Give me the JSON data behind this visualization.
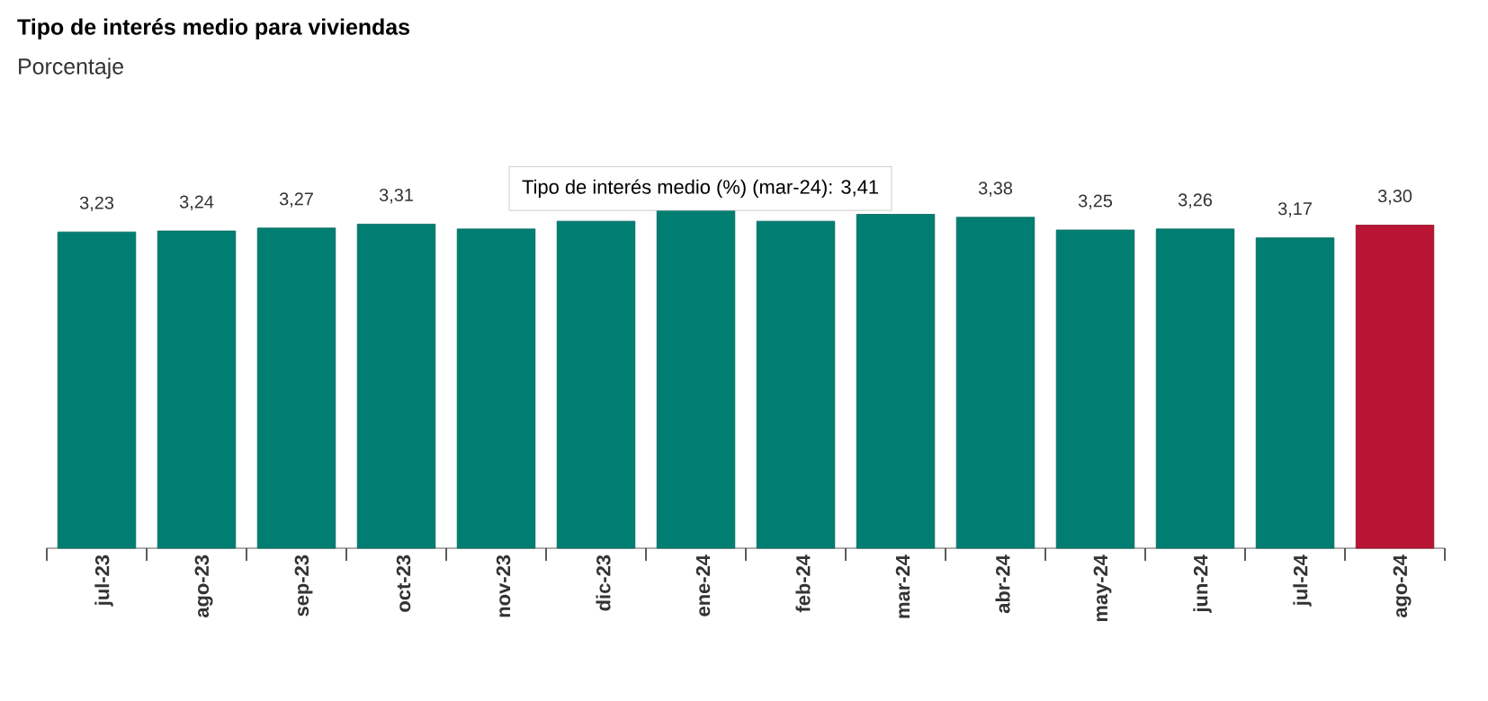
{
  "chart_data": {
    "type": "bar",
    "title": "Tipo de interés medio para viviendas",
    "subtitle": "Porcentaje",
    "categories": [
      "jul-23",
      "ago-23",
      "sep-23",
      "oct-23",
      "nov-23",
      "dic-23",
      "ene-24",
      "feb-24",
      "mar-24",
      "abr-24",
      "may-24",
      "jun-24",
      "jul-24",
      "ago-24"
    ],
    "values": [
      3.23,
      3.24,
      3.27,
      3.31,
      3.26,
      3.34,
      3.46,
      3.34,
      3.41,
      3.38,
      3.25,
      3.26,
      3.17,
      3.3
    ],
    "colors": [
      "#007e72",
      "#007e72",
      "#007e72",
      "#007e72",
      "#007e72",
      "#007e72",
      "#007e72",
      "#007e72",
      "#007e72",
      "#007e72",
      "#007e72",
      "#007e72",
      "#007e72",
      "#b91433"
    ],
    "value_labels": [
      "3,23",
      "3,24",
      "3,27",
      "3,31",
      null,
      null,
      null,
      null,
      null,
      "3,38",
      "3,25",
      "3,26",
      "3,17",
      "3,30"
    ],
    "annotations": [
      {
        "text": "Tipo de interés medio (%) (mar-24): 3,41",
        "x": "mar-24",
        "y": 3.41
      }
    ]
  }
}
